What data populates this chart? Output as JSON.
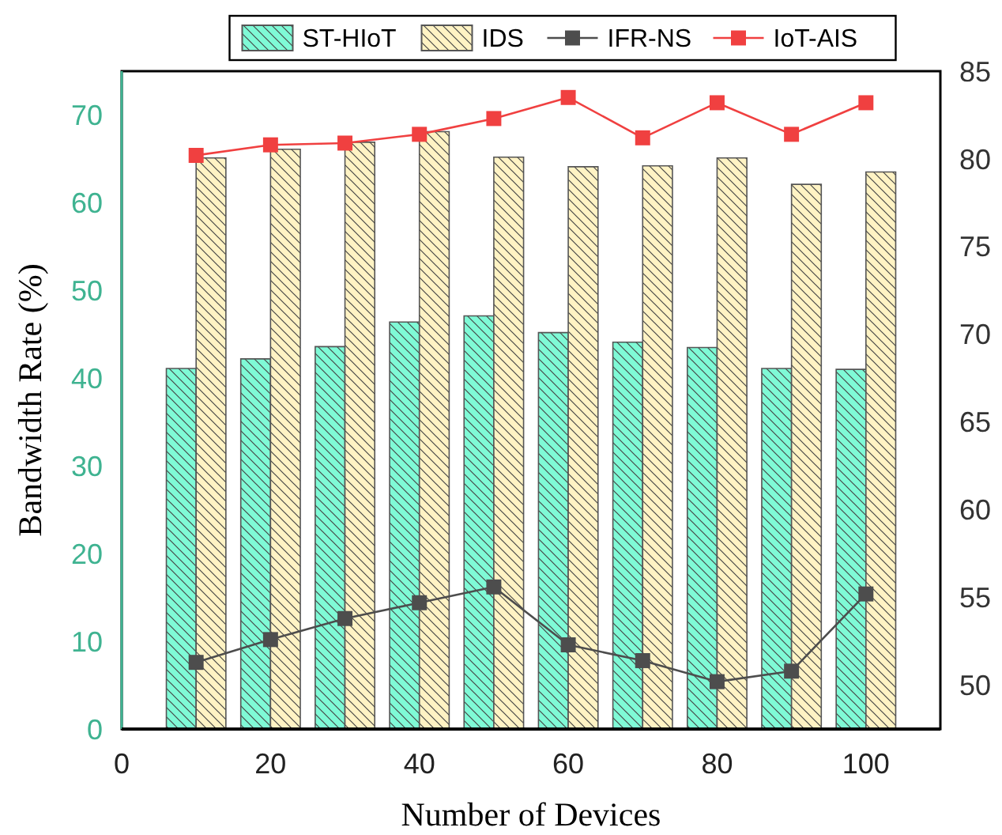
{
  "chart_data": {
    "type": "bar",
    "xlabel": "Number of Devices",
    "ylabel": "Bandwidth Rate (%)",
    "x": [
      10,
      20,
      30,
      40,
      50,
      60,
      70,
      80,
      90,
      100
    ],
    "xlim": [
      0,
      110
    ],
    "xticks": [
      0,
      20,
      40,
      60,
      80,
      100
    ],
    "ylim": [
      0,
      75
    ],
    "yticks": [
      0,
      10,
      20,
      30,
      40,
      50,
      60,
      70
    ],
    "y2lim": [
      47.5,
      85
    ],
    "y2ticks": [
      50,
      55,
      60,
      65,
      70,
      75,
      80,
      85
    ],
    "series": [
      {
        "name": "ST-HIoT",
        "color": "#7ffad6",
        "values": [
          41.1,
          42.2,
          43.6,
          46.4,
          47.1,
          45.2,
          44.1,
          43.5,
          41.1,
          41.0
        ]
      },
      {
        "name": "IDS",
        "color": "#fff3c4",
        "values": [
          65.1,
          66.1,
          66.9,
          68.1,
          65.2,
          64.1,
          64.2,
          65.1,
          62.1,
          63.5
        ]
      },
      {
        "name": "IFR-NS",
        "type": "line",
        "axis": "y2",
        "color": "#4d4d4d",
        "values": [
          51.3,
          52.6,
          53.8,
          54.7,
          55.6,
          52.3,
          51.4,
          50.2,
          50.8,
          55.2
        ]
      },
      {
        "name": "IoT-AIS",
        "type": "line",
        "axis": "y2",
        "color": "#f04040",
        "values": [
          80.2,
          80.8,
          80.9,
          81.4,
          82.3,
          83.5,
          81.2,
          83.2,
          81.4,
          83.2
        ]
      }
    ],
    "marker": "square",
    "legend": "top",
    "grid": false
  }
}
